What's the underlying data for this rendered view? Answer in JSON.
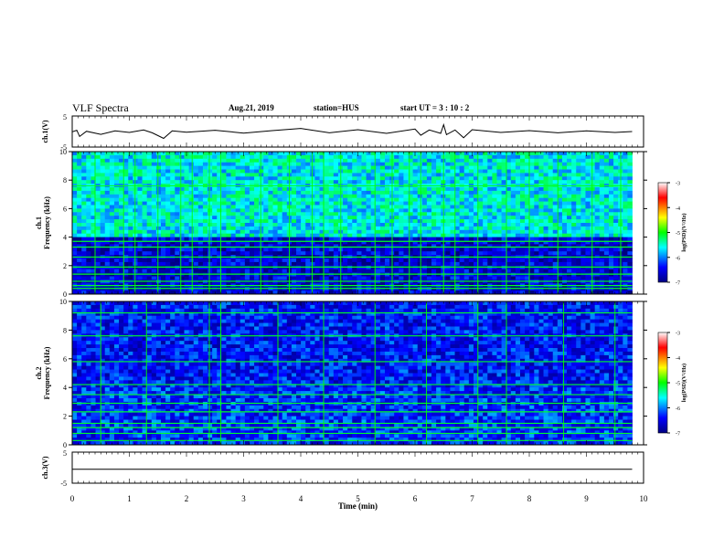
{
  "header": {
    "title": "VLF Spectra",
    "date": "Aug.21, 2019",
    "station": "station=HUS",
    "start_ut": "start  UT =   3  : 10 : 2"
  },
  "chart_data": [
    {
      "type": "line",
      "panel": "ch1-waveform",
      "ylabel": "ch.1(V)",
      "ylim": [
        -5,
        5
      ],
      "yticks": [
        "5",
        "-5"
      ],
      "xlim": [
        0,
        10
      ],
      "x": [
        0.0,
        0.08,
        0.13,
        0.25,
        0.5,
        0.75,
        1.0,
        1.25,
        1.4,
        1.6,
        1.75,
        2.0,
        2.5,
        3.0,
        3.5,
        4.0,
        4.5,
        5.0,
        5.5,
        6.0,
        6.1,
        6.25,
        6.45,
        6.5,
        6.55,
        6.7,
        6.85,
        7.0,
        7.5,
        8.0,
        8.5,
        9.0,
        9.5,
        9.8
      ],
      "y": [
        -0.1,
        0.4,
        -1.6,
        0.1,
        -0.9,
        0.2,
        -0.3,
        0.5,
        -0.4,
        -2.2,
        0.2,
        -0.2,
        0.4,
        -0.5,
        0.3,
        1.0,
        -0.4,
        0.6,
        -0.6,
        0.8,
        -1.2,
        0.5,
        -0.6,
        2.2,
        -1.0,
        0.5,
        -2.0,
        0.6,
        -0.3,
        0.3,
        -0.4,
        0.2,
        -0.3,
        0.0
      ]
    },
    {
      "type": "heatmap",
      "panel": "ch1-spectrogram",
      "ylabel": "ch.1\nFrequency (kHz)",
      "yticks": [
        0,
        2,
        4,
        6,
        8,
        10
      ],
      "ylim": [
        0,
        10
      ],
      "xlim": [
        0,
        9.8
      ],
      "bright_lines_kHz": [
        0.4,
        0.6,
        0.9,
        1.4,
        1.9,
        2.6,
        3.3,
        3.7,
        7.6
      ],
      "burst_times_min": [
        0.4,
        0.9,
        1.1,
        1.5,
        1.9,
        2.1,
        2.4,
        2.6,
        3.3,
        3.8,
        4.2,
        4.4,
        4.7,
        5.3,
        5.6,
        5.9,
        6.1,
        6.5,
        6.7,
        7.1,
        7.6,
        8.0,
        8.5,
        9.1,
        9.6
      ],
      "upper_band_log_psd": -5.6,
      "lower_band_log_psd": -6.6,
      "colorbar": {
        "label": "log(PSD)(V²/Hz)",
        "ticks": [
          "-3",
          "-4",
          "-5",
          "-6",
          "-7"
        ],
        "range": [
          -7,
          -3
        ]
      }
    },
    {
      "type": "heatmap",
      "panel": "ch2-spectrogram",
      "ylabel": "ch.2\nFrequency (kHz)",
      "yticks": [
        0,
        2,
        4,
        6,
        8,
        10
      ],
      "ylim": [
        0,
        10
      ],
      "xlim": [
        0,
        9.8
      ],
      "bright_lines_kHz": [
        0.3,
        0.8,
        1.2,
        1.5,
        2.3,
        2.9,
        3.5,
        4.2,
        5.8,
        7.6,
        9.2
      ],
      "burst_times_min": [
        0.5,
        1.3,
        2.4,
        2.6,
        3.6,
        4.4,
        5.3,
        6.2,
        7.1,
        7.6,
        8.6,
        9.5
      ],
      "upper_band_log_psd": -6.4,
      "lower_band_log_psd": -6.3,
      "colorbar": {
        "label": "log(PSD)(V²/Hz)",
        "ticks": [
          "-3",
          "-4",
          "-5",
          "-6",
          "-7"
        ],
        "range": [
          -7,
          -3
        ]
      }
    },
    {
      "type": "line",
      "panel": "ch3-waveform",
      "ylabel": "ch.3(V)",
      "ylim": [
        -5,
        5
      ],
      "yticks": [
        "5",
        "-5"
      ],
      "xlim": [
        0,
        10
      ],
      "x": [
        0.0,
        9.8
      ],
      "y": [
        -0.5,
        -0.5
      ]
    }
  ],
  "xaxis": {
    "label": "Time (min)",
    "ticks": [
      "0",
      "1",
      "2",
      "3",
      "4",
      "5",
      "6",
      "7",
      "8",
      "9",
      "10"
    ]
  }
}
